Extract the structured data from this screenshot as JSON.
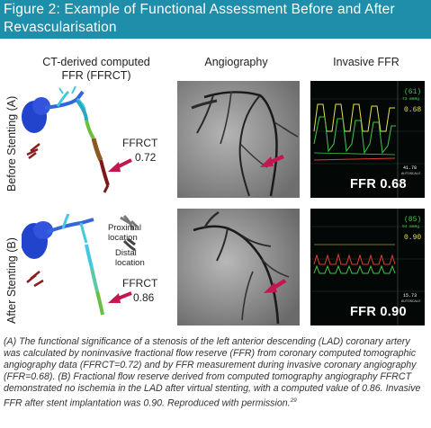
{
  "figure": {
    "title": "Figure 2: Example of Functional Assessment Before and After Revascularisation"
  },
  "columns": {
    "ct": "CT-derived computed FFR (FFRCT)",
    "angio": "Angiography",
    "ffr": "Invasive FFR"
  },
  "rows": {
    "before": "Before Stenting (A)",
    "after": "After Stenting (B)"
  },
  "panels": {
    "before": {
      "ffrct_label": "FFRCT",
      "ffrct_value": "0.72",
      "ffr_badge": "FFR 0.68",
      "monitor": {
        "top": "(61)",
        "top_small": "73 mmHg",
        "mid": "0.68",
        "bottom": "41.78",
        "bottom_small": "AUTOSCALE"
      }
    },
    "after": {
      "ffrct_label": "FFRCT",
      "ffrct_value": "0.86",
      "proximal": "Proximal location",
      "distal": "Distal location",
      "ffr_badge": "FFR 0.90",
      "monitor": {
        "top": "(85)",
        "top_small": "94 mmHg",
        "mid": "0.90",
        "bottom": "15.73",
        "bottom_small": "AUTOSCALE"
      }
    }
  },
  "colors": {
    "title_bg": "#1e8eaa",
    "arrow": "#c4164f",
    "ffr_green": "#3ec94a",
    "ffr_red": "#e23b2e",
    "ffr_yellow": "#e8e04a",
    "vessel_blue": "#2244cc",
    "vessel_cyan": "#44c8e0"
  },
  "caption": {
    "text": "(A) The functional significance of a stenosis of the left anterior descending (LAD) coronary artery was calculated by noninvasive fractional flow reserve (FFR) from coronary computed tomographic angiography data (FFRCT=0.72) and by FFR measurement during invasive coronary angiography (FFR=0.68). (B) Fractional flow reserve derived from computed tomography angiography FFRCT demonstrated no ischemia in the LAD after virtual stenting, with a computed value of 0.86. Invasive FFR after stent implantation was 0.90. Reproduced with permission.",
    "ref": "29"
  }
}
